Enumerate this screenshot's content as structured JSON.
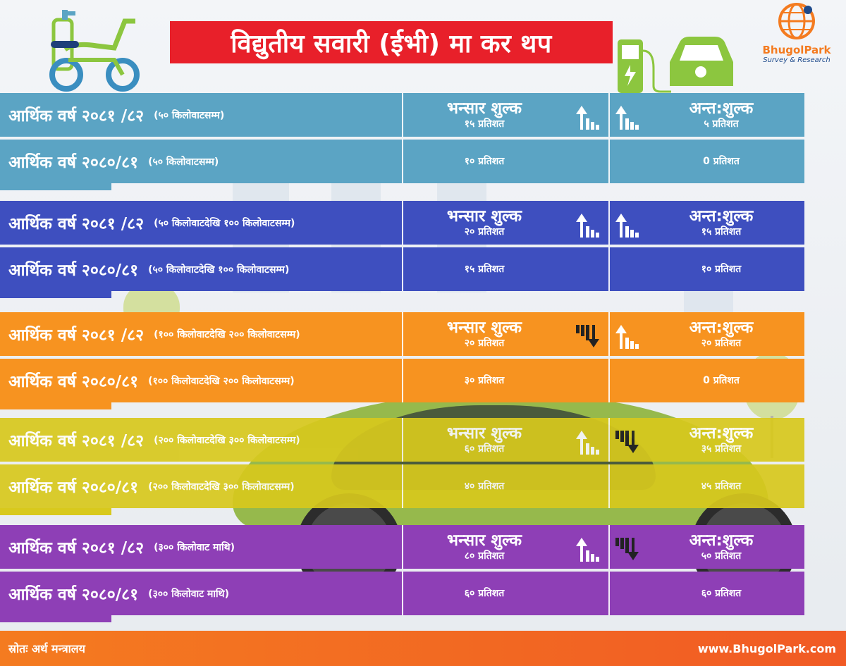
{
  "header": {
    "title": "विद्युतीय सवारी (ईभी) मा कर थप",
    "logo_name": "BhugolPark",
    "logo_tagline": "Survey & Research"
  },
  "colors": {
    "title_red": "#e8202a",
    "teal": "#5ba4c4",
    "blue": "#3e4fbf",
    "orange": "#f79320",
    "olive": "#d8c91d",
    "purple": "#8e3fb6",
    "footer_orange": "#f47b20",
    "icon_green": "#8cc63f"
  },
  "sections": [
    {
      "color": "#5ba4c4",
      "rows": [
        {
          "year": "आर्थिक वर्ष २०८१ /८२",
          "range": "(५० किलोवाटसम्म)",
          "customs_title": "भन्सार शुल्क",
          "customs": "१५ प्रतिशत",
          "excise_title": "अन्त:शुल्क",
          "excise": "५ प्रतिशत",
          "customs_trend": "up-icon",
          "excise_trend": "up-icon"
        },
        {
          "year": "आर्थिक वर्ष २०८०/८१",
          "range": "(५० किलोवाटसम्म)",
          "customs": "१० प्रतिशत",
          "excise": "0 प्रतिशत"
        }
      ]
    },
    {
      "color": "#3e4fbf",
      "rows": [
        {
          "year": "आर्थिक वर्ष २०८१ /८२",
          "range": "(५० किलोवाटदेखि १०० किलोवाटसम्म)",
          "customs_title": "भन्सार शुल्क",
          "customs": "२० प्रतिशत",
          "excise_title": "अन्त:शुल्क",
          "excise": "१५ प्रतिशत",
          "customs_trend": "up-icon",
          "excise_trend": "up-icon"
        },
        {
          "year": "आर्थिक वर्ष २०८०/८१",
          "range": "(५० किलोवाटदेखि १०० किलोवाटसम्म)",
          "customs": "१५ प्रतिशत",
          "excise": "१० प्रतिशत"
        }
      ]
    },
    {
      "color": "#f79320",
      "rows": [
        {
          "year": "आर्थिक वर्ष २०८१ /८२",
          "range": "(१०० किलोवाटदेखि २०० किलोवाटसम्म)",
          "customs_title": "भन्सार शुल्क",
          "customs": "२० प्रतिशत",
          "excise_title": "अन्त:शुल्क",
          "excise": "२० प्रतिशत",
          "customs_trend": "down-icon",
          "excise_trend": "up-icon"
        },
        {
          "year": "आर्थिक वर्ष २०८०/८१",
          "range": "(१०० किलोवाटदेखि २०० किलोवाटसम्म)",
          "customs": "३० प्रतिशत",
          "excise": "0 प्रतिशत"
        }
      ]
    },
    {
      "color": "#d8c91d",
      "rows": [
        {
          "year": "आर्थिक वर्ष २०८१ /८२",
          "range": "(२०० किलोवाटदेखि ३०० किलोवाटसम्म)",
          "customs_title": "भन्सार शुल्क",
          "customs": "६० प्रतिशत",
          "excise_title": "अन्त:शुल्क",
          "excise": "३५ प्रतिशत",
          "customs_trend": "up-icon",
          "excise_trend": "down-icon"
        },
        {
          "year": "आर्थिक वर्ष २०८०/८१",
          "range": "(२०० किलोवाटदेखि ३०० किलोवाटसम्म)",
          "customs": "४० प्रतिशत",
          "excise": "४५ प्रतिशत"
        }
      ]
    },
    {
      "color": "#8e3fb6",
      "rows": [
        {
          "year": "आर्थिक वर्ष २०८१ /८२",
          "range": "(३०० किलोवाट माथि)",
          "customs_title": "भन्सार शुल्क",
          "customs": "८० प्रतिशत",
          "excise_title": "अन्त:शुल्क",
          "excise": "५० प्रतिशत",
          "customs_trend": "up-icon",
          "excise_trend": "down-icon"
        },
        {
          "year": "आर्थिक वर्ष २०८०/८१",
          "range": "(३०० किलोवाट माथि)",
          "customs": "६० प्रतिशत",
          "excise": "६० प्रतिशत"
        }
      ]
    }
  ],
  "footer": {
    "source": "स्रोतः अर्थ मन्त्रालय",
    "url": "www.BhugolPark.com"
  }
}
